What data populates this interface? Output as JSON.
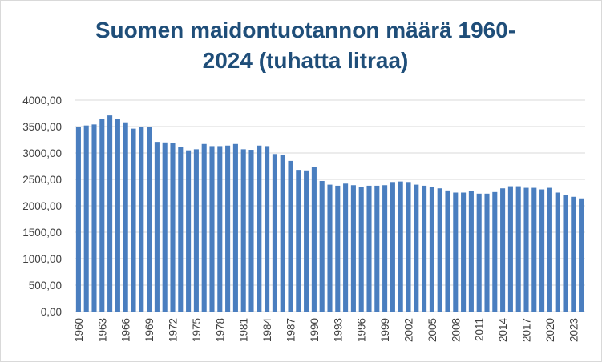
{
  "chart_data": {
    "type": "bar",
    "title": "Suomen maidontuotannon määrä 1960-2024 (tuhatta litraa)",
    "title_lines": [
      "Suomen maidontuotannon määrä 1960-",
      "2024 (tuhatta litraa)"
    ],
    "xlabel": "",
    "ylabel": "",
    "ylim": [
      0,
      4000
    ],
    "ytick_labels": [
      "0,00",
      "500,00",
      "1000,00",
      "1500,00",
      "2000,00",
      "2500,00",
      "3000,00",
      "3500,00",
      "4000,00"
    ],
    "grid": true,
    "legend": "none",
    "bar_color": "#4a7ebf",
    "grid_color": "#d9d9d9",
    "title_color": "#1f4e79",
    "categories": [
      1960,
      1961,
      1962,
      1963,
      1964,
      1965,
      1966,
      1967,
      1968,
      1969,
      1970,
      1971,
      1972,
      1973,
      1974,
      1975,
      1976,
      1977,
      1978,
      1979,
      1980,
      1981,
      1982,
      1983,
      1984,
      1985,
      1986,
      1987,
      1988,
      1989,
      1990,
      1991,
      1992,
      1993,
      1994,
      1995,
      1996,
      1997,
      1998,
      1999,
      2000,
      2001,
      2002,
      2003,
      2004,
      2005,
      2006,
      2007,
      2008,
      2009,
      2010,
      2011,
      2012,
      2013,
      2014,
      2015,
      2016,
      2017,
      2018,
      2019,
      2020,
      2021,
      2022,
      2023,
      2024
    ],
    "x_tick_labels": [
      "1960",
      "1963",
      "1966",
      "1969",
      "1972",
      "1975",
      "1978",
      "1981",
      "1984",
      "1987",
      "1990",
      "1993",
      "1996",
      "1999",
      "2002",
      "2005",
      "2008",
      "2011",
      "2014",
      "2017",
      "2020",
      "2023"
    ],
    "values": [
      3490,
      3520,
      3540,
      3650,
      3710,
      3650,
      3580,
      3460,
      3490,
      3490,
      3210,
      3200,
      3190,
      3110,
      3050,
      3070,
      3170,
      3130,
      3130,
      3140,
      3170,
      3070,
      3060,
      3140,
      3130,
      2980,
      2970,
      2850,
      2680,
      2670,
      2740,
      2470,
      2400,
      2380,
      2420,
      2390,
      2360,
      2380,
      2380,
      2390,
      2450,
      2460,
      2450,
      2400,
      2380,
      2360,
      2330,
      2290,
      2250,
      2250,
      2280,
      2230,
      2230,
      2260,
      2330,
      2370,
      2370,
      2340,
      2340,
      2310,
      2340,
      2250,
      2200,
      2170,
      2140
    ]
  }
}
